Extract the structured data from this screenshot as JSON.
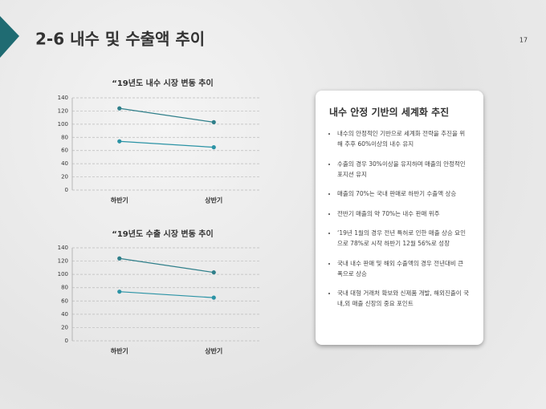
{
  "header": {
    "title": "2-6 내수 및 수출액 추이",
    "page": "17"
  },
  "chart_data": [
    {
      "type": "line",
      "title": "“19년도 내수 시장 변동 추이",
      "categories": [
        "하반기",
        "상반기"
      ],
      "series": [
        {
          "color": "#2f7f8a",
          "values": [
            124,
            103
          ]
        },
        {
          "color": "#2b93a5",
          "values": [
            74,
            65
          ]
        }
      ],
      "ylim": [
        0,
        140
      ],
      "yticks": [
        0,
        20,
        40,
        60,
        80,
        100,
        120,
        140
      ],
      "grid": true
    },
    {
      "type": "line",
      "title": "“19년도 수출 시장 변동 추이",
      "categories": [
        "하반기",
        "상반기"
      ],
      "series": [
        {
          "color": "#2f7f8a",
          "values": [
            124,
            103
          ]
        },
        {
          "color": "#2b93a5",
          "values": [
            74,
            65
          ]
        }
      ],
      "ylim": [
        0,
        140
      ],
      "yticks": [
        0,
        20,
        40,
        60,
        80,
        100,
        120,
        140
      ],
      "grid": true
    }
  ],
  "panel": {
    "title": "내수 안정 기반의 세계화 추진",
    "items": [
      "내수의 안정적인 기반으로 세계화 전략을 추진을 위해 추후 60%이상의 내수 유지",
      "수출의 경우 30%이상을 유지하며 매출의 안정적인 포지션 유지",
      "매출의 70%는 국내 판매로 하반기 수출액 상승",
      "전반기 매출의 약 70%는 내수 판매 위주",
      "‘19년 1월의 경우 전년 특허로 인한 매출 상승 요인으로 78%로 시작 하반기 12월 56%로 성장",
      "국내 내수 판매 및 해외 수출액의 경우 전년대비 큰 폭으로 상승",
      "국내 대형 거래처 확보와 신제품 개발, 해외진출이 국내,외 매출 신장의 중요 포인트"
    ]
  }
}
